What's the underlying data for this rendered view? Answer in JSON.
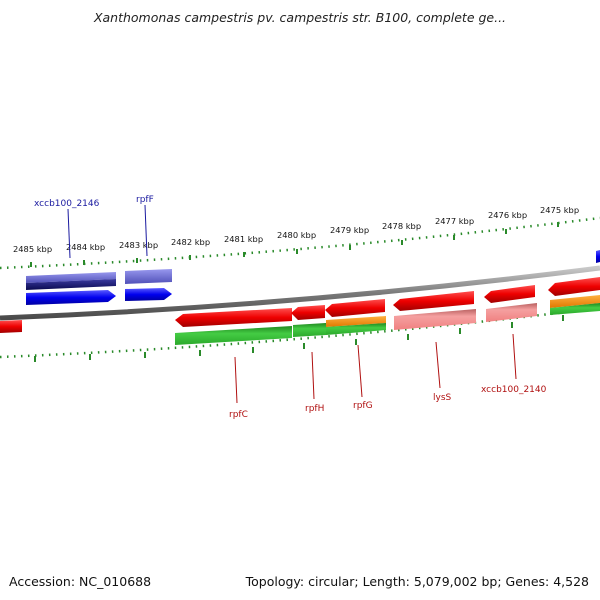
{
  "title": "Xanthomonas campestris pv. campestris str. B100, complete ge...",
  "footer": {
    "accession": "Accession: NC_010688",
    "summary": "Topology: circular; Length: 5,079,002 bp; Genes: 4,528"
  },
  "ruler_labels": [
    "2485 kbp",
    "2484 kbp",
    "2483 kbp",
    "2482 kbp",
    "2481 kbp",
    "2480 kbp",
    "2479 kbp",
    "2478 kbp",
    "2477 kbp",
    "2476 kbp",
    "2475 kbp"
  ],
  "gene_labels": {
    "xccb100_2146": "xccb100_2146",
    "rpfF": "rpfF",
    "rpfC": "rpfC",
    "rpfH": "rpfH",
    "rpfG": "rpfG",
    "lysS": "lysS",
    "xccb100_2140": "xccb100_2140"
  },
  "colors": {
    "forward_strand_gene": "#0000ee",
    "forward_strand_gene_dark": "#12126a",
    "forward_strand_cds": "#7070d8",
    "reverse_strand_gene": "#ee0000",
    "reverse_strand_cds": "#f08a8a",
    "highlight_green": "#33bb33",
    "highlight_orange": "#f59a20",
    "backbone": "#8c8c8c",
    "ruler_ticks": "#2a8a2a",
    "label_blue": "#1a1aa0",
    "label_red": "#b01010"
  }
}
